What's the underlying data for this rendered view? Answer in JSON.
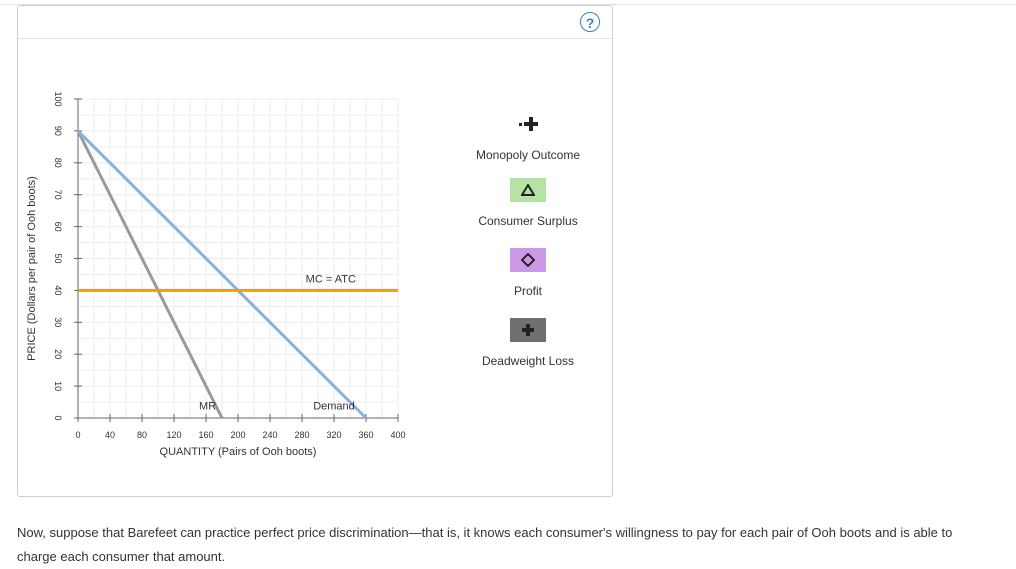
{
  "help": {
    "label": "?"
  },
  "chart_data": {
    "type": "line",
    "xlabel": "QUANTITY (Pairs of Ooh boots)",
    "ylabel": "PRICE (Dollars per pair of Ooh boots)",
    "xlim": [
      0,
      400
    ],
    "ylim": [
      0,
      100
    ],
    "x_ticks": [
      0,
      40,
      80,
      120,
      160,
      200,
      240,
      280,
      320,
      360,
      400
    ],
    "y_ticks": [
      0,
      10,
      20,
      30,
      40,
      50,
      60,
      70,
      80,
      90,
      100
    ],
    "grid": true,
    "series": [
      {
        "name": "Demand",
        "color": "#8eb0d4",
        "points": [
          [
            0,
            90
          ],
          [
            360,
            0
          ]
        ]
      },
      {
        "name": "MR",
        "color": "#9a9a9a",
        "points": [
          [
            0,
            90
          ],
          [
            180,
            0
          ]
        ]
      },
      {
        "name": "MC = ATC",
        "color": "#f59c00",
        "points": [
          [
            0,
            40
          ],
          [
            400,
            40
          ]
        ]
      }
    ]
  },
  "legend": {
    "items": [
      {
        "label": "Monopoly Outcome",
        "icon": "plus-dot-icon"
      },
      {
        "label": "Consumer Surplus",
        "icon": "triangle-icon",
        "color": "#b5e3a3"
      },
      {
        "label": "Profit",
        "icon": "diamond-icon",
        "color": "#cc99e6"
      },
      {
        "label": "Deadweight Loss",
        "icon": "plus-icon",
        "color": "#707070"
      }
    ]
  },
  "footer": {
    "text": "Now, suppose that Barefeet can practice perfect price discrimination—that is, it knows each consumer's willingness to pay for each pair of Ooh boots and is able to charge each consumer that amount."
  }
}
